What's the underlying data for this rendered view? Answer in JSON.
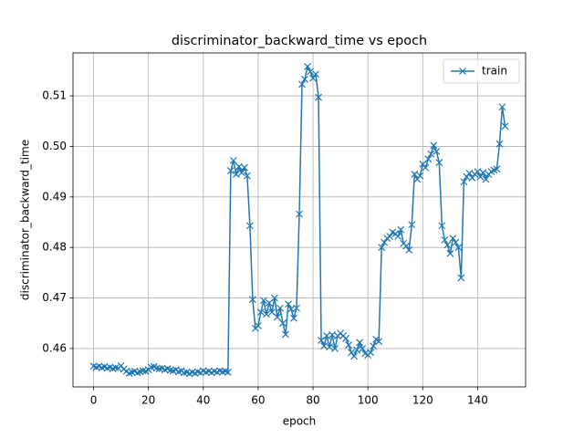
{
  "chart_data": {
    "type": "line",
    "title": "discriminator_backward_time vs epoch",
    "xlabel": "epoch",
    "ylabel": "discriminator_backward_time",
    "x": [
      0,
      1,
      2,
      3,
      4,
      5,
      6,
      7,
      8,
      9,
      10,
      11,
      12,
      13,
      14,
      15,
      16,
      17,
      18,
      19,
      20,
      21,
      22,
      23,
      24,
      25,
      26,
      27,
      28,
      29,
      30,
      31,
      32,
      33,
      34,
      35,
      36,
      37,
      38,
      39,
      40,
      41,
      42,
      43,
      44,
      45,
      46,
      47,
      48,
      49,
      50,
      51,
      52,
      53,
      54,
      55,
      56,
      57,
      58,
      59,
      60,
      61,
      62,
      63,
      64,
      65,
      66,
      67,
      68,
      69,
      70,
      71,
      72,
      73,
      74,
      75,
      76,
      77,
      78,
      79,
      80,
      81,
      82,
      83,
      84,
      85,
      86,
      87,
      88,
      89,
      90,
      91,
      92,
      93,
      94,
      95,
      96,
      97,
      98,
      99,
      100,
      101,
      102,
      103,
      104,
      105,
      106,
      107,
      108,
      109,
      110,
      111,
      112,
      113,
      114,
      115,
      116,
      117,
      118,
      119,
      120,
      121,
      122,
      123,
      124,
      125,
      126,
      127,
      128,
      129,
      130,
      131,
      132,
      133,
      134,
      135,
      136,
      137,
      138,
      139,
      140,
      141,
      142,
      143,
      144,
      145,
      146,
      147,
      148,
      149,
      150
    ],
    "series": [
      {
        "name": "train",
        "color": "#1f77b4",
        "marker": "x",
        "values": [
          0.4565,
          0.4563,
          0.4565,
          0.4562,
          0.4564,
          0.4561,
          0.4563,
          0.456,
          0.4562,
          0.4561,
          0.4566,
          0.4559,
          0.4555,
          0.4551,
          0.4553,
          0.4555,
          0.4552,
          0.4554,
          0.4556,
          0.4555,
          0.4558,
          0.4563,
          0.4564,
          0.4561,
          0.456,
          0.4561,
          0.4558,
          0.456,
          0.4557,
          0.4556,
          0.4558,
          0.4554,
          0.4556,
          0.4552,
          0.4553,
          0.455,
          0.4553,
          0.4551,
          0.4554,
          0.4552,
          0.4556,
          0.4553,
          0.4555,
          0.4552,
          0.4555,
          0.4553,
          0.4556,
          0.4554,
          0.4555,
          0.4553,
          0.4952,
          0.4972,
          0.4945,
          0.496,
          0.4948,
          0.4958,
          0.4942,
          0.4843,
          0.4697,
          0.464,
          0.4645,
          0.4672,
          0.4695,
          0.4668,
          0.469,
          0.4672,
          0.47,
          0.4662,
          0.468,
          0.465,
          0.4628,
          0.4688,
          0.4678,
          0.466,
          0.468,
          0.4866,
          0.5123,
          0.5133,
          0.5158,
          0.5148,
          0.5135,
          0.5143,
          0.5097,
          0.4616,
          0.4605,
          0.4625,
          0.4603,
          0.4627,
          0.46,
          0.4625,
          0.463,
          0.4625,
          0.462,
          0.4607,
          0.4592,
          0.4585,
          0.4597,
          0.4612,
          0.46,
          0.459,
          0.4587,
          0.4592,
          0.4605,
          0.4618,
          0.4614,
          0.48,
          0.481,
          0.4818,
          0.4822,
          0.483,
          0.4827,
          0.4822,
          0.4835,
          0.4808,
          0.4803,
          0.4795,
          0.4845,
          0.4945,
          0.4935,
          0.4942,
          0.4965,
          0.4958,
          0.4975,
          0.4985,
          0.5002,
          0.499,
          0.4968,
          0.4843,
          0.4815,
          0.4805,
          0.4788,
          0.4818,
          0.481,
          0.48,
          0.474,
          0.493,
          0.494,
          0.4947,
          0.4938,
          0.4945,
          0.495,
          0.494,
          0.4948,
          0.4935,
          0.4945,
          0.495,
          0.4953,
          0.4955,
          0.5005,
          0.5078,
          0.504
        ]
      }
    ],
    "xlim": [
      -7.5,
      157.5
    ],
    "ylim": [
      0.4524,
      0.5185
    ],
    "xticks": [
      0,
      20,
      40,
      60,
      80,
      100,
      120,
      140
    ],
    "yticks": [
      0.46,
      0.47,
      0.48,
      0.49,
      {
        "value": 0.5,
        "label": "0.50"
      },
      0.51
    ],
    "grid": true,
    "legend": "upper right"
  }
}
